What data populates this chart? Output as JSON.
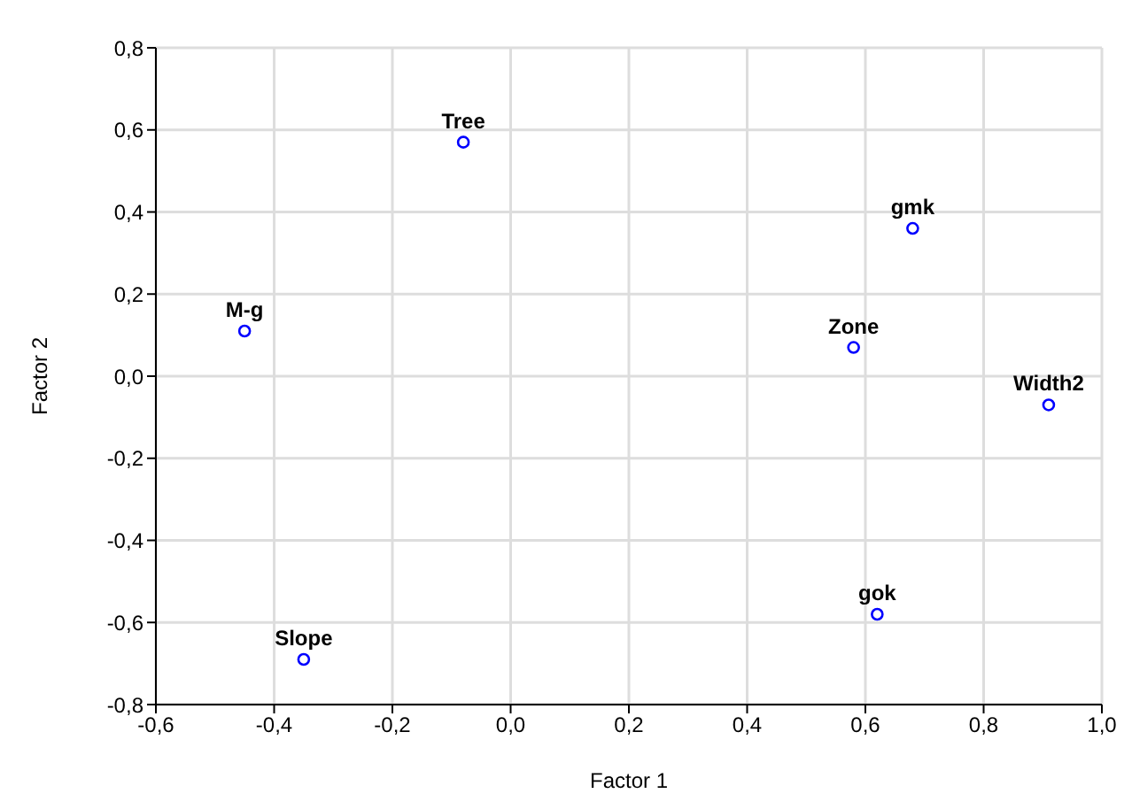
{
  "chart_data": {
    "type": "scatter",
    "xlabel": "Factor 1",
    "ylabel": "Factor 2",
    "x": [
      -0.08,
      0.68,
      -0.45,
      0.58,
      0.91,
      0.62,
      -0.35
    ],
    "series": [
      {
        "color": "#0000ff",
        "values": [
          0.57,
          0.36,
          0.11,
          0.07,
          -0.07,
          -0.58,
          -0.69
        ]
      }
    ],
    "annotations": [
      {
        "text": "Tree",
        "x": -0.08,
        "y": 0.57
      },
      {
        "text": "gmk",
        "x": 0.68,
        "y": 0.36
      },
      {
        "text": "M-g",
        "x": -0.45,
        "y": 0.11
      },
      {
        "text": "Zone",
        "x": 0.58,
        "y": 0.07
      },
      {
        "text": "Width2",
        "x": 0.91,
        "y": -0.07
      },
      {
        "text": "gok",
        "x": 0.62,
        "y": -0.58
      },
      {
        "text": "Slope",
        "x": -0.35,
        "y": -0.69
      }
    ],
    "xlim": [
      -0.6,
      1.0
    ],
    "xticks": [
      {
        "value": -0.6,
        "label": "-0,6"
      },
      {
        "value": -0.4,
        "label": "-0,4"
      },
      {
        "value": -0.2,
        "label": "-0,2"
      },
      {
        "value": 0,
        "label": "0,0"
      },
      {
        "value": 0.2,
        "label": "0,2"
      },
      {
        "value": 0.4,
        "label": "0,4"
      },
      {
        "value": 0.6,
        "label": "0,6"
      },
      {
        "value": 0.8,
        "label": "0,8"
      },
      {
        "value": 1.0,
        "label": "1,0"
      }
    ],
    "ylim": [
      -0.8,
      0.8
    ],
    "yticks": [
      {
        "value": -0.8,
        "label": "-0,8"
      },
      {
        "value": -0.6,
        "label": "-0,6"
      },
      {
        "value": -0.4,
        "label": "-0,4"
      },
      {
        "value": -0.2,
        "label": "-0,2"
      },
      {
        "value": 0,
        "label": "0,0"
      },
      {
        "value": 0.2,
        "label": "0,2"
      },
      {
        "value": 0.4,
        "label": "0,4"
      },
      {
        "value": 0.6,
        "label": "0,6"
      },
      {
        "value": 0.8,
        "label": "0,8"
      }
    ],
    "grid": true,
    "marker": "circle"
  }
}
